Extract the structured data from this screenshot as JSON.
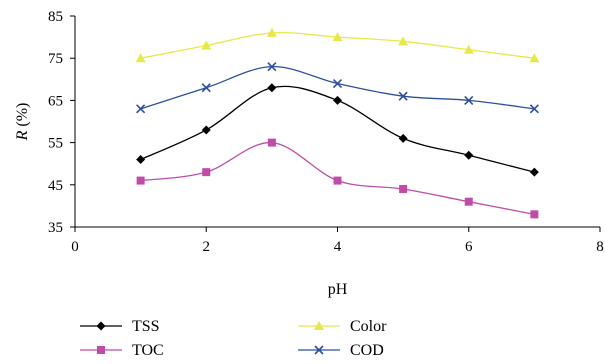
{
  "chart_data": {
    "type": "line",
    "title": "",
    "xlabel": "pH",
    "ylabel_var": "R",
    "ylabel_unit": " (%)",
    "xlim": [
      0,
      8
    ],
    "ylim": [
      35,
      85
    ],
    "xticks": [
      "0",
      "2",
      "4",
      "6",
      "8"
    ],
    "yticks": [
      "35",
      "45",
      "55",
      "65",
      "75",
      "85"
    ],
    "grid": false,
    "legend_position": "bottom",
    "x": [
      1,
      2,
      3,
      4,
      5,
      6,
      7
    ],
    "series": [
      {
        "name": "TSS",
        "color": "#000000",
        "marker": "diamond",
        "values": [
          51,
          58,
          68,
          65,
          56,
          52,
          48
        ]
      },
      {
        "name": "TOC",
        "color": "#c04ca8",
        "marker": "square",
        "values": [
          46,
          48,
          55,
          46,
          44,
          41,
          38
        ]
      },
      {
        "name": "Color",
        "color": "#e8e84a",
        "marker": "triangle",
        "values": [
          75,
          78,
          81,
          80,
          79,
          77,
          75
        ]
      },
      {
        "name": "COD",
        "color": "#2e4f9e",
        "marker": "x",
        "values": [
          63,
          68,
          73,
          69,
          66,
          65,
          63
        ]
      }
    ]
  }
}
